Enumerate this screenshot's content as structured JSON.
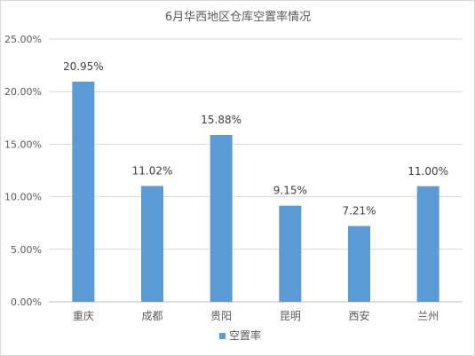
{
  "chart_data": {
    "type": "bar",
    "title": "6月华西地区仓库空置率情况",
    "categories": [
      "重庆",
      "成都",
      "贵阳",
      "昆明",
      "西安",
      "兰州"
    ],
    "series": [
      {
        "name": "空置率",
        "values": [
          20.95,
          11.02,
          15.88,
          9.15,
          7.21,
          11.0
        ],
        "data_labels": [
          "20.95%",
          "11.02%",
          "15.88%",
          "9.15%",
          "7.21%",
          "11.00%"
        ],
        "color": "#5b9bd5"
      }
    ],
    "y_ticks": [
      "0.00%",
      "5.00%",
      "10.00%",
      "15.00%",
      "20.00%",
      "25.00%"
    ],
    "ylim": [
      0,
      25
    ],
    "grid": true,
    "legend_position": "bottom",
    "xlabel": "",
    "ylabel": ""
  }
}
